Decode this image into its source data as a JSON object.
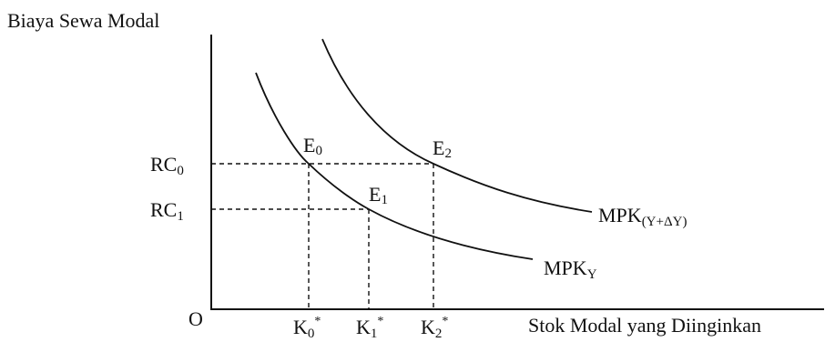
{
  "labels": {
    "y_axis_title": "Biaya Sewa Modal",
    "x_axis_title": "Stok Modal yang Diinginkan",
    "origin": "O"
  },
  "y_ticks": [
    {
      "base": "RC",
      "sub": "0"
    },
    {
      "base": "RC",
      "sub": "1"
    }
  ],
  "x_ticks": [
    {
      "base": "K",
      "sub": "0",
      "sup": "*"
    },
    {
      "base": "K",
      "sub": "1",
      "sup": "*"
    },
    {
      "base": "K",
      "sub": "2",
      "sup": "*"
    }
  ],
  "points": [
    {
      "base": "E",
      "sub": "0"
    },
    {
      "base": "E",
      "sub": "1"
    },
    {
      "base": "E",
      "sub": "2"
    }
  ],
  "curves": [
    {
      "base": "MPK",
      "sub": "Y"
    },
    {
      "base": "MPK",
      "sub": "(Y+ΔY)"
    }
  ]
}
